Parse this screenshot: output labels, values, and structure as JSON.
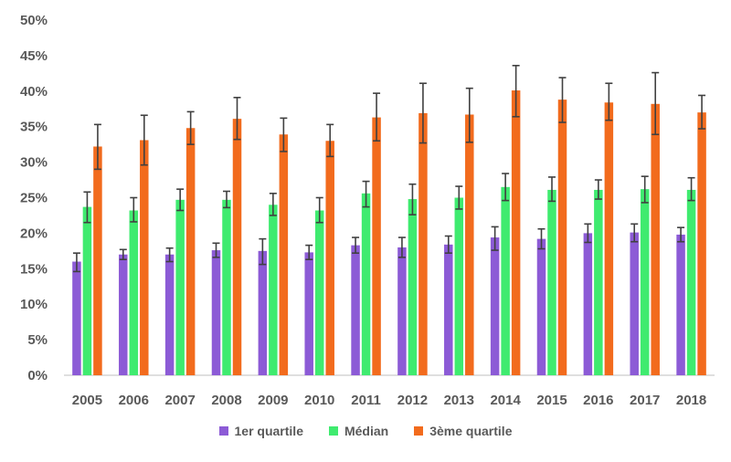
{
  "chart_data": {
    "type": "bar",
    "categories": [
      "2005",
      "2006",
      "2007",
      "2008",
      "2009",
      "2010",
      "2011",
      "2012",
      "2013",
      "2014",
      "2015",
      "2016",
      "2017",
      "2018"
    ],
    "ylim": [
      0,
      50
    ],
    "yticks": [
      "0%",
      "5%",
      "10%",
      "15%",
      "20%",
      "25%",
      "30%",
      "35%",
      "40%",
      "45%",
      "50%"
    ],
    "grid": false,
    "legend_position": "bottom",
    "series": [
      {
        "name": "1er quartile",
        "color": "#8C5BD6",
        "values": [
          16.0,
          17.0,
          17.0,
          17.6,
          17.5,
          17.3,
          18.3,
          18.0,
          18.4,
          19.4,
          19.2,
          20.0,
          20.1,
          19.8
        ],
        "err_low": [
          14.6,
          16.3,
          16.0,
          16.6,
          15.6,
          16.3,
          17.2,
          16.6,
          17.2,
          17.6,
          17.8,
          18.7,
          18.8,
          18.8
        ],
        "err_high": [
          17.2,
          17.7,
          17.9,
          18.6,
          19.2,
          18.3,
          19.4,
          19.4,
          19.6,
          20.9,
          20.6,
          21.3,
          21.3,
          20.8
        ]
      },
      {
        "name": "Médian",
        "color": "#3FEB6F",
        "values": [
          23.7,
          23.2,
          24.7,
          24.7,
          24.0,
          23.2,
          25.6,
          24.8,
          25.0,
          26.5,
          26.1,
          26.1,
          26.2,
          26.1
        ],
        "err_low": [
          21.5,
          21.6,
          23.2,
          23.6,
          22.5,
          21.5,
          23.7,
          22.6,
          23.4,
          24.6,
          24.5,
          24.8,
          24.3,
          24.6
        ],
        "err_high": [
          25.8,
          25.0,
          26.2,
          25.9,
          25.6,
          25.0,
          27.3,
          26.9,
          26.6,
          28.4,
          27.9,
          27.5,
          28.0,
          27.8
        ]
      },
      {
        "name": "3ème quartile",
        "color": "#F26B1D",
        "values": [
          32.2,
          33.1,
          34.8,
          36.1,
          33.9,
          33.0,
          36.3,
          36.9,
          36.7,
          40.1,
          38.8,
          38.4,
          38.2,
          37.0
        ],
        "err_low": [
          29.0,
          29.6,
          32.5,
          33.2,
          31.5,
          30.8,
          33.0,
          32.7,
          32.8,
          36.4,
          35.6,
          35.9,
          33.9,
          34.7
        ],
        "err_high": [
          35.3,
          36.6,
          37.1,
          39.1,
          36.2,
          35.3,
          39.7,
          41.1,
          40.4,
          43.6,
          41.9,
          41.1,
          42.6,
          39.4
        ]
      }
    ]
  }
}
